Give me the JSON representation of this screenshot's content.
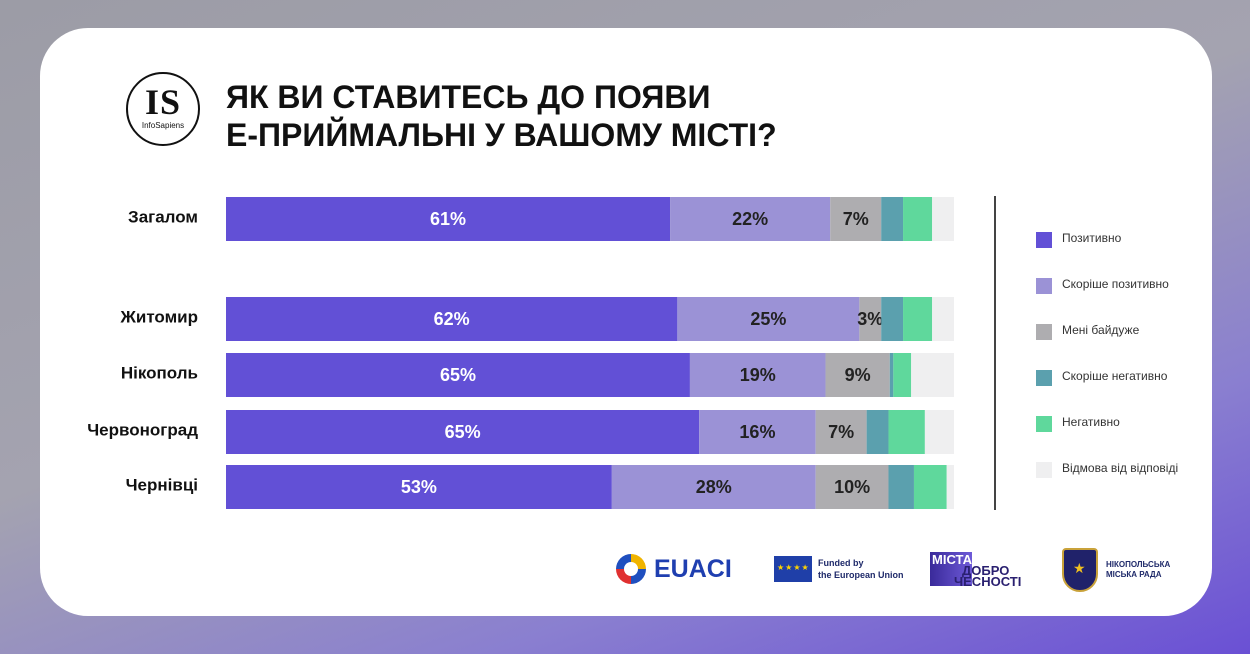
{
  "logo": {
    "mark": "IS",
    "sub": "InfoSapiens"
  },
  "title": {
    "line1": "ЯК ВИ СТАВИТЕСЬ ДО ПОЯВИ",
    "line2": "Е-ПРИЙМАЛЬНІ У ВАШОМУ МІСТІ?"
  },
  "colors": {
    "positive": "#6250d6",
    "rather_positive": "#9b92d6",
    "indifferent": "#aeadb0",
    "rather_negative": "#5ba0ae",
    "negative": "#5fd89c",
    "no_answer": "#efeff0"
  },
  "chart_data": {
    "type": "bar",
    "orientation": "horizontal",
    "stacked": true,
    "normalized": true,
    "xlim": [
      0,
      100
    ],
    "grid": false,
    "legend_placement": "right",
    "categories": [
      "Загалом",
      "Житомир",
      "Нікополь",
      "Червоноград",
      "Чернівці"
    ],
    "series": [
      {
        "name": "Позитивно",
        "color_key": "positive",
        "values": [
          61,
          62,
          65,
          65,
          53
        ],
        "labels": [
          "61%",
          "62%",
          "65%",
          "65%",
          "53%"
        ]
      },
      {
        "name": "Скоріше позитивно",
        "color_key": "rather_positive",
        "values": [
          22,
          25,
          19,
          16,
          28
        ],
        "labels": [
          "22%",
          "25%",
          "19%",
          "16%",
          "28%"
        ]
      },
      {
        "name": "Мені байдуже",
        "color_key": "indifferent",
        "values": [
          7,
          3,
          9,
          7,
          10
        ],
        "labels": [
          "7%",
          "3%",
          "9%",
          "7%",
          "10%"
        ]
      },
      {
        "name": "Скоріше негативно",
        "color_key": "rather_negative",
        "values": [
          3,
          3,
          0.5,
          3,
          3.5
        ],
        "labels": [
          "",
          "",
          "",
          "",
          ""
        ]
      },
      {
        "name": "Негативно",
        "color_key": "negative",
        "values": [
          4,
          4,
          2.5,
          5,
          4.5
        ],
        "labels": [
          "",
          "",
          "",
          "",
          ""
        ]
      },
      {
        "name": "Відмова від відповіді",
        "color_key": "no_answer",
        "values": [
          3,
          3,
          6,
          4,
          1
        ],
        "labels": [
          "",
          "",
          "",
          "",
          ""
        ]
      }
    ]
  },
  "footer": {
    "euaci": "EUACI",
    "eu_line1": "Funded by",
    "eu_line2": "the European Union",
    "mista_line1": "МІСТА",
    "mista_line2": "ДОБРО",
    "mista_line3": "ЧЕСНОСТІ",
    "city_line1": "НІКОПОЛЬСЬКА",
    "city_line2": "МІСЬКА РАДА",
    "icons": [
      "euaci-globe-logo",
      "eu-flag",
      "mista-dobrochesnosti-logo",
      "nikopol-coat-of-arms"
    ]
  }
}
